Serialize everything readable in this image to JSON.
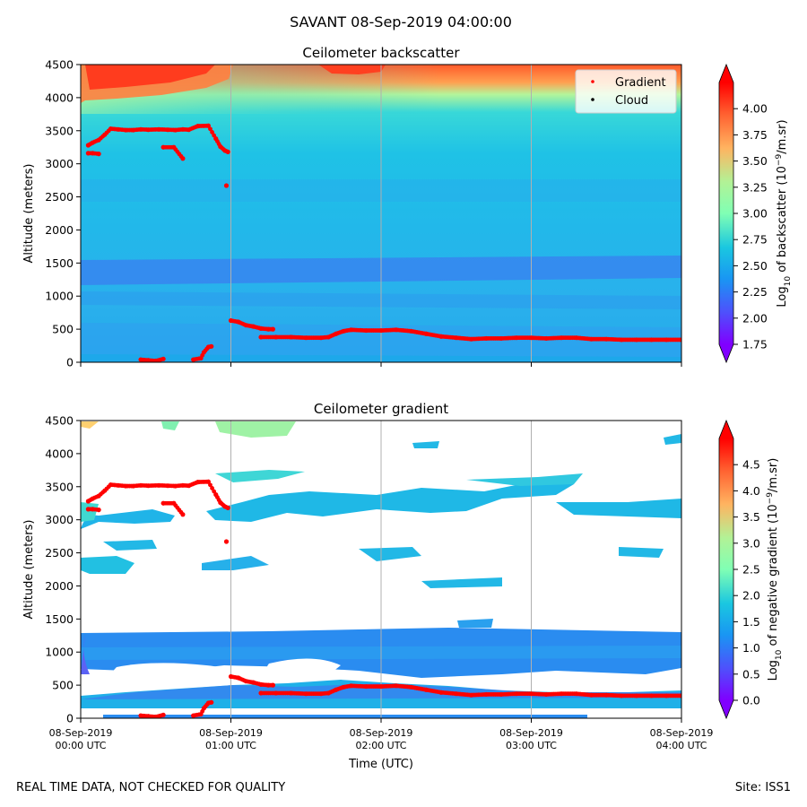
{
  "chart_data": [
    {
      "type": "heatmap",
      "title": "Ceilometer backscatter",
      "xlabel": "",
      "ylabel": "Altitude (meters)",
      "ylim": [
        0,
        4500
      ],
      "yticks": [
        0,
        500,
        1000,
        1500,
        2000,
        2500,
        3000,
        3500,
        4000,
        4500
      ],
      "xlim_hours": [
        0,
        4
      ],
      "colorbar": {
        "label": "Log10 of backscatter (10^-9/m.sr)",
        "label_main": "Log",
        "label_sub": "10",
        "label_mid": " of backscatter (10",
        "label_sup": "−9",
        "label_end": "/m.sr)",
        "range": [
          1.75,
          4.25
        ],
        "ticks": [
          "1.75",
          "2.00",
          "2.25",
          "2.50",
          "2.75",
          "3.00",
          "3.25",
          "3.50",
          "3.75",
          "4.00"
        ],
        "colormap": "rainbow"
      },
      "legend": {
        "placement": "top-right",
        "entries": [
          {
            "label": "Gradient",
            "color": "#ff0000"
          },
          {
            "label": "Cloud",
            "color": "#000000"
          }
        ]
      },
      "features": [
        {
          "name": "high backscatter layer",
          "altitude_range_m": [
            3800,
            4500
          ],
          "time_range_h": [
            0,
            1.3
          ],
          "log10_value": 4.2
        },
        {
          "name": "high backscatter patch",
          "altitude_range_m": [
            4380,
            4500
          ],
          "time_range_h": [
            1.7,
            2.15
          ],
          "log10_value": 4.2
        },
        {
          "name": "mid layer",
          "altitude_range_m": [
            1150,
            1600
          ],
          "time_range_h": [
            0,
            4
          ],
          "log10_value": 2.15
        },
        {
          "name": "boundary layer",
          "altitude_range_m": [
            0,
            600
          ],
          "time_range_h": [
            0,
            4
          ],
          "log10_value": 2.45
        }
      ],
      "series": [
        {
          "name": "Gradient",
          "color": "#ff0000",
          "points": [
            [
              0.05,
              3280
            ],
            [
              0.08,
              3320
            ],
            [
              0.12,
              3360
            ],
            [
              0.16,
              3440
            ],
            [
              0.2,
              3530
            ],
            [
              0.25,
              3520
            ],
            [
              0.3,
              3510
            ],
            [
              0.35,
              3510
            ],
            [
              0.4,
              3520
            ],
            [
              0.45,
              3515
            ],
            [
              0.52,
              3520
            ],
            [
              0.58,
              3515
            ],
            [
              0.63,
              3510
            ],
            [
              0.68,
              3520
            ],
            [
              0.72,
              3515
            ],
            [
              0.78,
              3570
            ],
            [
              0.85,
              3575
            ],
            [
              0.9,
              3380
            ],
            [
              0.93,
              3260
            ],
            [
              0.96,
              3200
            ],
            [
              0.98,
              3180
            ],
            [
              0.05,
              3160
            ],
            [
              0.08,
              3160
            ],
            [
              0.12,
              3150
            ],
            [
              0.55,
              3250
            ],
            [
              0.62,
              3250
            ],
            [
              0.68,
              3080
            ],
            [
              0.97,
              2670
            ],
            [
              0.4,
              40
            ],
            [
              0.45,
              30
            ],
            [
              0.5,
              20
            ],
            [
              0.55,
              50
            ],
            [
              0.75,
              40
            ],
            [
              0.8,
              60
            ],
            [
              0.82,
              150
            ],
            [
              0.85,
              230
            ],
            [
              0.87,
              240
            ],
            [
              1.0,
              630
            ],
            [
              1.05,
              610
            ],
            [
              1.1,
              560
            ],
            [
              1.15,
              540
            ],
            [
              1.2,
              510
            ],
            [
              1.25,
              500
            ],
            [
              1.28,
              500
            ],
            [
              1.2,
              380
            ],
            [
              1.3,
              380
            ],
            [
              1.4,
              380
            ],
            [
              1.5,
              370
            ],
            [
              1.6,
              370
            ],
            [
              1.65,
              380
            ],
            [
              1.7,
              430
            ],
            [
              1.75,
              470
            ],
            [
              1.8,
              490
            ],
            [
              1.9,
              480
            ],
            [
              2.0,
              480
            ],
            [
              2.1,
              490
            ],
            [
              2.2,
              470
            ],
            [
              2.3,
              430
            ],
            [
              2.4,
              390
            ],
            [
              2.5,
              370
            ],
            [
              2.6,
              350
            ],
            [
              2.7,
              360
            ],
            [
              2.8,
              360
            ],
            [
              2.9,
              370
            ],
            [
              3.0,
              370
            ],
            [
              3.1,
              360
            ],
            [
              3.2,
              370
            ],
            [
              3.3,
              370
            ],
            [
              3.4,
              350
            ],
            [
              3.5,
              350
            ],
            [
              3.6,
              340
            ],
            [
              3.7,
              340
            ],
            [
              3.8,
              340
            ],
            [
              3.9,
              340
            ],
            [
              4.0,
              340
            ]
          ]
        },
        {
          "name": "Cloud",
          "color": "#000000",
          "points": []
        }
      ]
    },
    {
      "type": "heatmap",
      "title": "Ceilometer gradient",
      "xlabel": "Time (UTC)",
      "ylabel": "Altitude (meters)",
      "ylim": [
        0,
        4500
      ],
      "yticks": [
        0,
        500,
        1000,
        1500,
        2000,
        2500,
        3000,
        3500,
        4000,
        4500
      ],
      "xlim_hours": [
        0,
        4
      ],
      "x_tick_labels": [
        [
          "08-Sep-2019",
          "00:00 UTC"
        ],
        [
          "08-Sep-2019",
          "01:00 UTC"
        ],
        [
          "08-Sep-2019",
          "02:00 UTC"
        ],
        [
          "08-Sep-2019",
          "03:00 UTC"
        ],
        [
          "08-Sep-2019",
          "04:00 UTC"
        ]
      ],
      "colorbar": {
        "label": "Log10 of negative gradient (10^-9/m.sr)",
        "label_main": "Log",
        "label_sub": "10",
        "label_mid": " of negative gradient (10",
        "label_sup": "−9",
        "label_end": "/m.sr)",
        "range": [
          0,
          5
        ],
        "ticks": [
          "0.0",
          "0.5",
          "1.0",
          "1.5",
          "2.0",
          "2.5",
          "3.0",
          "3.5",
          "4.0",
          "4.5"
        ],
        "colormap": "rainbow"
      },
      "features": [
        {
          "name": "gradient band",
          "altitude_range_m": [
            700,
            1350
          ],
          "time_range_h": [
            0,
            4
          ],
          "log10_value": 1.1
        },
        {
          "name": "boundary gradient",
          "altitude_range_m": [
            150,
            650
          ],
          "time_range_h": [
            0,
            4
          ],
          "log10_value": 1.3
        },
        {
          "name": "cloud-level patches",
          "altitude_range_m": [
            2900,
            3700
          ],
          "time_range_h": [
            0,
            4
          ],
          "log10_value": 1.5
        },
        {
          "name": "upper patches",
          "altitude_range_m": [
            2250,
            2650
          ],
          "time_range_h": [
            0,
            4
          ],
          "log10_value": 1.5
        }
      ],
      "series_ref": "same Gradient points as panel 1"
    }
  ],
  "page": {
    "suptitle": "SAVANT 08-Sep-2019 04:00:00",
    "footer_left": "REAL TIME DATA, NOT CHECKED FOR QUALITY",
    "footer_right": "Site: ISS1"
  }
}
